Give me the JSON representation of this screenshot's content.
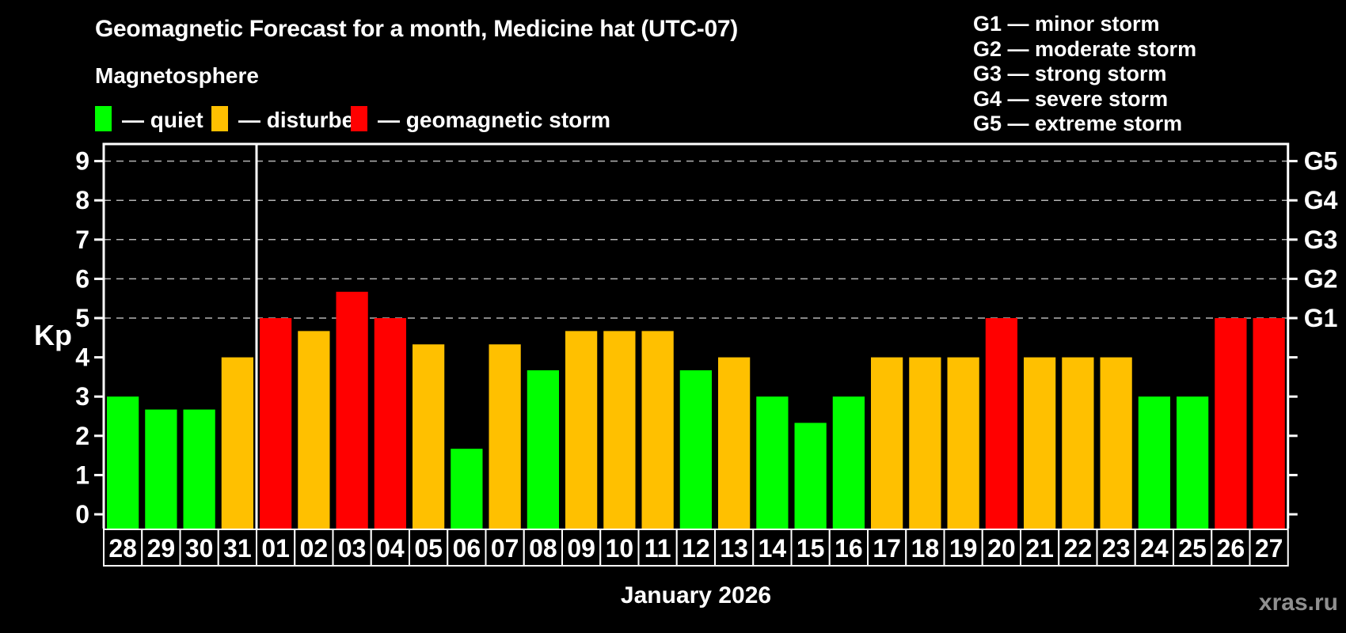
{
  "title": "Geomagnetic Forecast for a month, Medicine hat (UTC-07)",
  "subtitle": "Magnetosphere",
  "status_legend": [
    {
      "id": "quiet",
      "label": "— quiet",
      "color": "#00ff00"
    },
    {
      "id": "disturbed",
      "label": "— disturbed",
      "color": "#ffc000"
    },
    {
      "id": "storm",
      "label": "— geomagnetic storm",
      "color": "#ff0000"
    }
  ],
  "g_scale_legend": [
    {
      "label": "G1 — minor storm"
    },
    {
      "label": "G2 — moderate storm"
    },
    {
      "label": "G3 — strong storm"
    },
    {
      "label": "G4 — severe storm"
    },
    {
      "label": "G5 — extreme storm"
    }
  ],
  "watermark": "xras.ru",
  "chart_data": {
    "type": "bar",
    "title": "Geomagnetic Forecast for a month, Medicine hat (UTC-07)",
    "ylabel": "Kp",
    "xlabel": "January 2026",
    "ylim": [
      0,
      9
    ],
    "y_ticks": [
      0,
      1,
      2,
      3,
      4,
      5,
      6,
      7,
      8,
      9
    ],
    "gridlines": [
      5,
      6,
      7,
      8,
      9
    ],
    "grid": true,
    "legend_position": "top",
    "right_axis_labels": {
      "5": "G1",
      "6": "G2",
      "7": "G3",
      "8": "G4",
      "9": "G5"
    },
    "month_separator_after_index": 3,
    "categories": [
      "28",
      "29",
      "30",
      "31",
      "01",
      "02",
      "03",
      "04",
      "05",
      "06",
      "07",
      "08",
      "09",
      "10",
      "11",
      "12",
      "13",
      "14",
      "15",
      "16",
      "17",
      "18",
      "19",
      "20",
      "21",
      "22",
      "23",
      "24",
      "25",
      "26",
      "27"
    ],
    "values": [
      3,
      2.67,
      2.67,
      4,
      5,
      4.67,
      5.67,
      5,
      4.33,
      1.67,
      4.33,
      3.67,
      4.67,
      4.67,
      4.67,
      3.67,
      4,
      3,
      2.33,
      3,
      4,
      4,
      4,
      5,
      4,
      4,
      4,
      3,
      3,
      5,
      5
    ],
    "statuses": [
      "quiet",
      "quiet",
      "quiet",
      "disturbed",
      "storm",
      "disturbed",
      "storm",
      "storm",
      "disturbed",
      "quiet",
      "disturbed",
      "quiet",
      "disturbed",
      "disturbed",
      "disturbed",
      "quiet",
      "disturbed",
      "quiet",
      "quiet",
      "quiet",
      "disturbed",
      "disturbed",
      "disturbed",
      "storm",
      "disturbed",
      "disturbed",
      "disturbed",
      "quiet",
      "quiet",
      "storm",
      "storm"
    ],
    "status_colors": {
      "quiet": "#00ff00",
      "disturbed": "#ffc000",
      "storm": "#ff0000"
    }
  }
}
